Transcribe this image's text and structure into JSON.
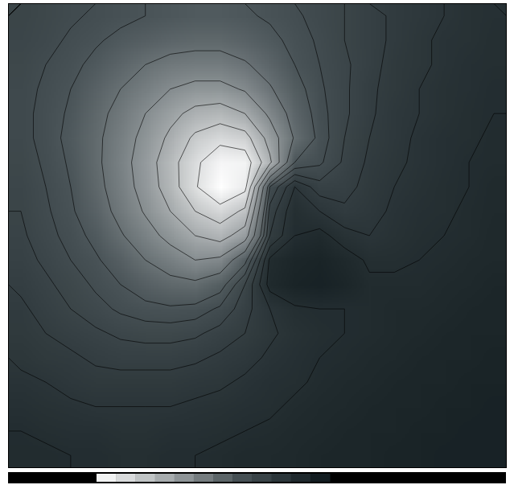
{
  "chart_data": {
    "type": "heatmap",
    "tick_labels": false,
    "cells": [
      [
        3.0,
        3.2,
        3.4,
        3.6,
        3.8,
        4.0,
        4.1,
        4.2,
        4.2,
        4.1,
        3.9,
        3.6,
        3.3,
        3.0,
        2.7,
        2.4,
        2.2,
        2.0,
        1.8,
        1.7
      ],
      [
        3.1,
        3.3,
        3.6,
        3.9,
        4.2,
        4.4,
        4.6,
        4.7,
        4.7,
        4.5,
        4.2,
        3.8,
        3.4,
        3.0,
        2.7,
        2.4,
        2.1,
        1.9,
        1.8,
        1.6
      ],
      [
        3.2,
        3.5,
        3.8,
        4.2,
        4.6,
        5.0,
        5.3,
        5.4,
        5.4,
        5.1,
        4.6,
        4.0,
        3.5,
        3.1,
        2.7,
        2.3,
        2.1,
        1.9,
        1.7,
        1.6
      ],
      [
        3.3,
        3.6,
        4.0,
        4.5,
        5.0,
        5.5,
        6.0,
        6.3,
        6.3,
        5.9,
        5.1,
        4.3,
        3.6,
        3.1,
        2.6,
        2.3,
        2.0,
        1.8,
        1.7,
        1.5
      ],
      [
        3.3,
        3.7,
        4.1,
        4.7,
        5.3,
        6.0,
        6.7,
        7.3,
        7.5,
        7.0,
        5.8,
        4.6,
        3.7,
        3.1,
        2.6,
        2.2,
        2.0,
        1.8,
        1.6,
        1.5
      ],
      [
        3.3,
        3.7,
        4.2,
        4.8,
        5.5,
        6.3,
        7.2,
        8.2,
        8.7,
        8.4,
        6.6,
        4.9,
        3.8,
        3.0,
        2.5,
        2.2,
        1.9,
        1.7,
        1.6,
        1.4
      ],
      [
        3.2,
        3.6,
        4.1,
        4.8,
        5.6,
        6.5,
        7.6,
        8.8,
        9.7,
        9.6,
        7.2,
        4.0,
        3.6,
        2.9,
        2.4,
        2.1,
        1.9,
        1.7,
        1.5,
        1.4
      ],
      [
        3.1,
        3.5,
        4.0,
        4.7,
        5.5,
        6.4,
        7.5,
        8.9,
        10.0,
        9.3,
        3.5,
        2.0,
        2.8,
        2.7,
        2.3,
        2.0,
        1.8,
        1.6,
        1.5,
        1.3
      ],
      [
        3.0,
        3.4,
        3.9,
        4.5,
        5.3,
        6.1,
        7.0,
        8.0,
        8.6,
        7.8,
        2.8,
        1.6,
        2.0,
        2.4,
        2.2,
        1.9,
        1.7,
        1.6,
        1.4,
        1.3
      ],
      [
        2.9,
        3.3,
        3.7,
        4.2,
        4.9,
        5.6,
        6.3,
        7.0,
        7.4,
        6.5,
        2.5,
        1.5,
        1.3,
        1.8,
        2.0,
        1.8,
        1.6,
        1.5,
        1.4,
        1.2
      ],
      [
        2.8,
        3.1,
        3.5,
        3.9,
        4.4,
        5.0,
        5.5,
        6.0,
        5.8,
        4.2,
        1.4,
        1.0,
        0.9,
        1.2,
        1.6,
        1.6,
        1.5,
        1.4,
        1.3,
        1.2
      ],
      [
        2.6,
        2.9,
        3.2,
        3.6,
        4.0,
        4.4,
        4.7,
        4.8,
        4.3,
        3.0,
        1.3,
        0.9,
        0.8,
        1.0,
        1.4,
        1.4,
        1.4,
        1.3,
        1.2,
        1.1
      ],
      [
        2.4,
        2.7,
        3.0,
        3.3,
        3.6,
        3.8,
        3.9,
        3.8,
        3.4,
        2.7,
        2.0,
        1.6,
        1.5,
        1.5,
        1.4,
        1.3,
        1.3,
        1.2,
        1.1,
        1.0
      ],
      [
        2.3,
        2.5,
        2.7,
        2.9,
        3.1,
        3.2,
        3.2,
        3.1,
        2.8,
        2.5,
        2.1,
        1.8,
        1.6,
        1.5,
        1.4,
        1.3,
        1.2,
        1.1,
        1.0,
        1.0
      ],
      [
        2.1,
        2.3,
        2.4,
        2.6,
        2.7,
        2.7,
        2.7,
        2.6,
        2.4,
        2.2,
        1.9,
        1.7,
        1.5,
        1.4,
        1.3,
        1.2,
        1.1,
        1.0,
        1.0,
        0.9
      ],
      [
        1.9,
        2.0,
        2.2,
        2.3,
        2.3,
        2.3,
        2.3,
        2.2,
        2.1,
        1.9,
        1.7,
        1.6,
        1.4,
        1.3,
        1.2,
        1.1,
        1.0,
        1.0,
        0.9,
        0.9
      ],
      [
        1.7,
        1.8,
        1.9,
        2.0,
        2.0,
        2.0,
        2.0,
        1.9,
        1.8,
        1.7,
        1.6,
        1.4,
        1.3,
        1.2,
        1.1,
        1.0,
        1.0,
        0.9,
        0.9,
        0.8
      ],
      [
        1.5,
        1.6,
        1.7,
        1.7,
        1.8,
        1.8,
        1.7,
        1.7,
        1.6,
        1.5,
        1.4,
        1.3,
        1.2,
        1.1,
        1.0,
        1.0,
        0.9,
        0.9,
        0.8,
        0.8
      ],
      [
        1.4,
        1.4,
        1.5,
        1.5,
        1.6,
        1.6,
        1.5,
        1.5,
        1.4,
        1.3,
        1.3,
        1.2,
        1.1,
        1.0,
        1.0,
        0.9,
        0.9,
        0.8,
        0.8,
        0.8
      ]
    ],
    "contour_levels": [
      1.5,
      2,
      2.5,
      3,
      3.5,
      4,
      5,
      6,
      7,
      8,
      9
    ],
    "colorbar": {
      "range": [
        10,
        0
      ]
    }
  }
}
